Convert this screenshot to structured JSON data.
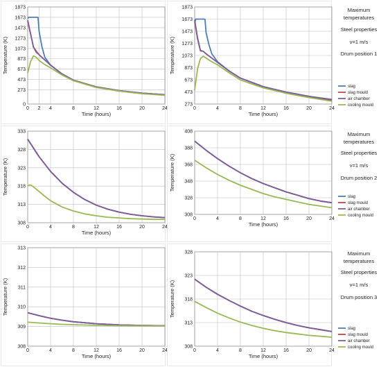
{
  "colors": {
    "slag": "#4a7ebb",
    "slag_mould": "#be4b48",
    "air_chamber": "#7d5fa0",
    "cooling_mould": "#98b954"
  },
  "legend": [
    "slag",
    "slag mould",
    "air chamber",
    "cooling mould"
  ],
  "side_notes": [
    [
      "Maximum",
      "temperatures",
      "Steel properties",
      "v=1 m/s",
      "Drum position 1"
    ],
    [
      "Maximum",
      "temperatures",
      "Steel properties",
      "v=1 m/s",
      "Drum position 2"
    ],
    [
      "Maximum",
      "temperatures",
      "Steel properties",
      "v=1 m/s",
      "Drum position 3"
    ]
  ],
  "chart_data": [
    {
      "type": "line",
      "panel": "row1-left",
      "xlabel": "Time (hours)",
      "ylabel": "Temperature (K)",
      "x": [
        0,
        2,
        4,
        8,
        12,
        16,
        20,
        24
      ],
      "xlim": [
        0,
        24
      ],
      "ylim": [
        0,
        1873
      ],
      "yticks": [
        0,
        273,
        473,
        673,
        873,
        1073,
        1273,
        1473,
        1673,
        1873
      ],
      "grid": true,
      "legend": false,
      "series": [
        {
          "name": "slag",
          "x": [
            0,
            0.2,
            0.5,
            1,
            1.5,
            1.8,
            2,
            2.5,
            3,
            4,
            6,
            8,
            12,
            16,
            20,
            24
          ],
          "y": [
            1650,
            1673,
            1673,
            1673,
            1673,
            1670,
            1400,
            1100,
            900,
            750,
            580,
            460,
            330,
            260,
            210,
            180
          ]
        },
        {
          "name": "slag mould",
          "x": [
            0,
            0.5,
            1,
            1.5,
            2,
            2.5,
            3,
            4,
            6,
            8,
            12,
            16,
            20,
            24
          ],
          "y": [
            1600,
            1350,
            1100,
            1000,
            950,
            900,
            850,
            750,
            580,
            460,
            330,
            260,
            210,
            180
          ]
        },
        {
          "name": "air chamber",
          "x": [
            0,
            0.5,
            1,
            1.5,
            2,
            2.5,
            3,
            4,
            6,
            8,
            12,
            16,
            20,
            24
          ],
          "y": [
            1620,
            1360,
            1100,
            1020,
            950,
            900,
            850,
            750,
            580,
            460,
            330,
            260,
            210,
            180
          ]
        },
        {
          "name": "cooling mould",
          "x": [
            0,
            0.5,
            1,
            1.5,
            2,
            3,
            4,
            6,
            8,
            12,
            16,
            20,
            24
          ],
          "y": [
            600,
            820,
            930,
            900,
            840,
            760,
            700,
            560,
            450,
            320,
            250,
            200,
            170
          ]
        }
      ]
    },
    {
      "type": "line",
      "panel": "row1-right",
      "xlabel": "Time (hours)",
      "ylabel": "Temperature (K)",
      "x": [
        0,
        4,
        8,
        12,
        16,
        20,
        24
      ],
      "xlim": [
        0,
        24
      ],
      "ylim": [
        273,
        1873
      ],
      "yticks": [
        273,
        473,
        673,
        873,
        1073,
        1273,
        1473,
        1673,
        1873
      ],
      "grid": true,
      "legend": true,
      "series": [
        {
          "name": "slag",
          "x": [
            0,
            0.2,
            0.5,
            1,
            1.5,
            1.8,
            2,
            2.5,
            3,
            4,
            6,
            8,
            12,
            16,
            20,
            24
          ],
          "y": [
            1600,
            1673,
            1673,
            1673,
            1673,
            1670,
            1450,
            1250,
            1100,
            970,
            820,
            700,
            560,
            470,
            400,
            350
          ]
        },
        {
          "name": "slag mould",
          "x": [
            0,
            0.5,
            1,
            1.5,
            2,
            3,
            4,
            6,
            8,
            12,
            16,
            20,
            24
          ],
          "y": [
            1640,
            1350,
            1150,
            1140,
            1100,
            1030,
            960,
            820,
            700,
            560,
            470,
            400,
            340
          ]
        },
        {
          "name": "air chamber",
          "x": [
            0,
            0.5,
            1,
            1.5,
            2,
            3,
            4,
            6,
            8,
            12,
            16,
            20,
            24
          ],
          "y": [
            1660,
            1370,
            1160,
            1140,
            1100,
            1030,
            960,
            820,
            700,
            560,
            470,
            400,
            330
          ]
        },
        {
          "name": "cooling mould",
          "x": [
            0,
            0.5,
            1,
            1.5,
            2,
            3,
            4,
            6,
            8,
            12,
            16,
            20,
            24
          ],
          "y": [
            500,
            850,
            1020,
            1060,
            1030,
            970,
            920,
            790,
            670,
            540,
            450,
            380,
            320
          ]
        }
      ]
    },
    {
      "type": "line",
      "panel": "row2-left",
      "xlabel": "Time (hours)",
      "ylabel": "Temperature (K)",
      "x": [
        0,
        4,
        8,
        12,
        16,
        20,
        24
      ],
      "xlim": [
        0,
        24
      ],
      "ylim": [
        308,
        333
      ],
      "yticks": [
        308,
        313,
        318,
        323,
        328,
        333
      ],
      "grid": true,
      "legend": false,
      "series": [
        {
          "name": "slag",
          "x": [
            0,
            2,
            4,
            6,
            8,
            10,
            12,
            14,
            16,
            18,
            20,
            22,
            24
          ],
          "y": [
            330.8,
            326.0,
            322.0,
            318.8,
            316.3,
            314.3,
            312.8,
            311.7,
            310.9,
            310.3,
            309.9,
            309.6,
            309.4
          ]
        },
        {
          "name": "slag mould",
          "x": [
            0,
            2,
            4,
            6,
            8,
            10,
            12,
            14,
            16,
            18,
            20,
            22,
            24
          ],
          "y": [
            330.8,
            326.0,
            322.0,
            318.8,
            316.3,
            314.3,
            312.8,
            311.7,
            310.9,
            310.3,
            309.9,
            309.6,
            309.4
          ]
        },
        {
          "name": "air chamber",
          "x": [
            0,
            2,
            4,
            6,
            8,
            10,
            12,
            14,
            16,
            18,
            20,
            22,
            24
          ],
          "y": [
            330.8,
            326.0,
            322.0,
            318.8,
            316.3,
            314.3,
            312.8,
            311.7,
            310.9,
            310.3,
            309.9,
            309.6,
            309.4
          ]
        },
        {
          "name": "cooling mould",
          "x": [
            0,
            0.5,
            1,
            2,
            3,
            4,
            6,
            8,
            10,
            12,
            14,
            16,
            18,
            20,
            22,
            24
          ],
          "y": [
            318.2,
            318.3,
            317.8,
            316.5,
            315.2,
            314.0,
            312.3,
            311.2,
            310.4,
            309.9,
            309.5,
            309.3,
            309.1,
            309.0,
            308.9,
            308.9
          ]
        }
      ]
    },
    {
      "type": "line",
      "panel": "row2-right",
      "xlabel": "Time (hours)",
      "ylabel": "Temperature (K)",
      "x": [
        0,
        4,
        8,
        12,
        16,
        20,
        24
      ],
      "xlim": [
        0,
        24
      ],
      "ylim": [
        308,
        408
      ],
      "yticks": [
        308,
        328,
        348,
        368,
        388,
        408
      ],
      "grid": true,
      "legend": true,
      "series": [
        {
          "name": "slag",
          "x": [
            0,
            2,
            4,
            6,
            8,
            10,
            12,
            14,
            16,
            18,
            20,
            22,
            24
          ],
          "y": [
            396,
            385,
            375,
            366,
            358,
            351,
            345,
            340,
            335,
            331,
            327,
            324,
            322
          ]
        },
        {
          "name": "slag mould",
          "x": [
            0,
            2,
            4,
            6,
            8,
            10,
            12,
            14,
            16,
            18,
            20,
            22,
            24
          ],
          "y": [
            396,
            385,
            375,
            366,
            358,
            351,
            345,
            340,
            335,
            331,
            327,
            324,
            322
          ]
        },
        {
          "name": "air chamber",
          "x": [
            0,
            2,
            4,
            6,
            8,
            10,
            12,
            14,
            16,
            18,
            20,
            22,
            24
          ],
          "y": [
            396,
            385,
            375,
            366,
            358,
            351,
            345,
            340,
            335,
            331,
            327,
            324,
            322
          ]
        },
        {
          "name": "cooling mould",
          "x": [
            0,
            2,
            4,
            6,
            8,
            10,
            12,
            14,
            16,
            18,
            20,
            22,
            24
          ],
          "y": [
            373,
            364,
            356,
            349,
            343,
            338,
            333,
            329,
            326,
            323,
            320,
            318,
            316
          ]
        }
      ]
    },
    {
      "type": "line",
      "panel": "row3-left",
      "xlabel": "Time (hours)",
      "ylabel": "Temperature (K)",
      "x": [
        0,
        4,
        8,
        12,
        16,
        20,
        24
      ],
      "xlim": [
        0,
        24
      ],
      "ylim": [
        308,
        313
      ],
      "yticks": [
        308,
        309,
        310,
        311,
        312,
        313
      ],
      "grid": true,
      "legend": false,
      "series": [
        {
          "name": "slag",
          "x": [
            0,
            2,
            4,
            6,
            8,
            12,
            16,
            20,
            24
          ],
          "y": [
            309.7,
            309.55,
            309.42,
            309.32,
            309.24,
            309.14,
            309.08,
            309.05,
            309.04
          ]
        },
        {
          "name": "slag mould",
          "x": [
            0,
            2,
            4,
            6,
            8,
            12,
            16,
            20,
            24
          ],
          "y": [
            309.7,
            309.55,
            309.42,
            309.32,
            309.24,
            309.14,
            309.08,
            309.05,
            309.04
          ]
        },
        {
          "name": "air chamber",
          "x": [
            0,
            2,
            4,
            6,
            8,
            12,
            16,
            20,
            24
          ],
          "y": [
            309.7,
            309.55,
            309.42,
            309.32,
            309.24,
            309.14,
            309.08,
            309.05,
            309.04
          ]
        },
        {
          "name": "cooling mould",
          "x": [
            0,
            2,
            4,
            6,
            8,
            12,
            16,
            20,
            24
          ],
          "y": [
            309.22,
            309.18,
            309.14,
            309.11,
            309.09,
            309.06,
            309.04,
            309.03,
            309.02
          ]
        }
      ]
    },
    {
      "type": "line",
      "panel": "row3-right",
      "xlabel": "Time (hours)",
      "ylabel": "Temperature (K)",
      "x": [
        0,
        4,
        8,
        12,
        16,
        20,
        24
      ],
      "xlim": [
        0,
        24
      ],
      "ylim": [
        308,
        328
      ],
      "yticks": [
        308,
        313,
        318,
        323,
        328
      ],
      "grid": true,
      "legend": true,
      "series": [
        {
          "name": "slag",
          "x": [
            0,
            2,
            4,
            6,
            8,
            10,
            12,
            14,
            16,
            18,
            20,
            22,
            24
          ],
          "y": [
            322.2,
            320.5,
            319.0,
            317.7,
            316.5,
            315.4,
            314.5,
            313.7,
            313.0,
            312.4,
            311.9,
            311.5,
            311.1
          ]
        },
        {
          "name": "slag mould",
          "x": [
            0,
            2,
            4,
            6,
            8,
            10,
            12,
            14,
            16,
            18,
            20,
            22,
            24
          ],
          "y": [
            322.2,
            320.5,
            319.0,
            317.7,
            316.5,
            315.4,
            314.5,
            313.7,
            313.0,
            312.4,
            311.9,
            311.5,
            311.1
          ]
        },
        {
          "name": "air chamber",
          "x": [
            0,
            2,
            4,
            6,
            8,
            10,
            12,
            14,
            16,
            18,
            20,
            22,
            24
          ],
          "y": [
            322.2,
            320.5,
            319.0,
            317.7,
            316.5,
            315.4,
            314.5,
            313.7,
            313.0,
            312.4,
            311.9,
            311.5,
            311.1
          ]
        },
        {
          "name": "cooling mould",
          "x": [
            0,
            2,
            4,
            6,
            8,
            10,
            12,
            14,
            16,
            18,
            20,
            22,
            24
          ],
          "y": [
            317.5,
            316.2,
            315.0,
            314.0,
            313.1,
            312.4,
            311.8,
            311.3,
            310.9,
            310.6,
            310.3,
            310.1,
            309.9
          ]
        }
      ]
    }
  ]
}
